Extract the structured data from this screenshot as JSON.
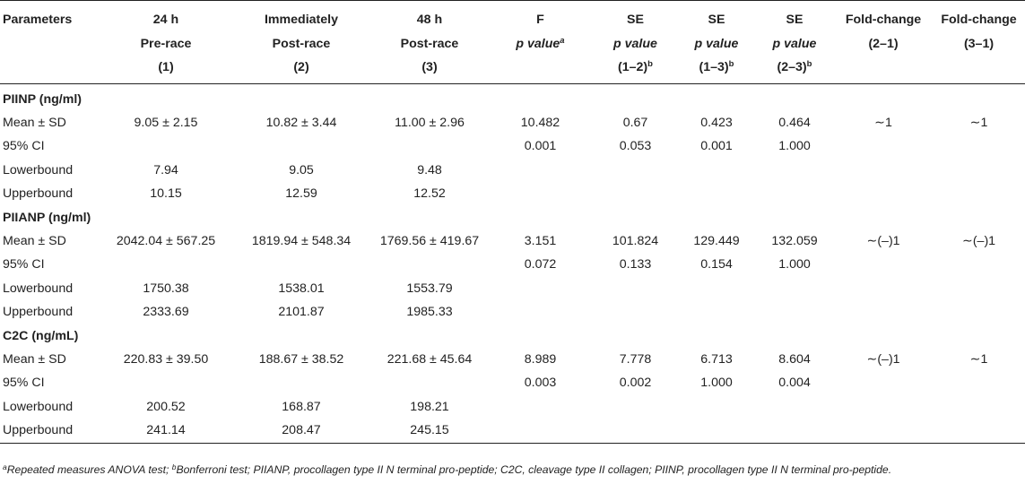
{
  "header": {
    "parameters": "Parameters",
    "col1": [
      "24 h",
      "Pre-race",
      "(1)"
    ],
    "col2": [
      "Immediately",
      "Post-race",
      "(2)"
    ],
    "col3": [
      "48 h",
      "Post-race",
      "(3)"
    ],
    "f": [
      "F",
      "p value",
      "a"
    ],
    "se12": [
      "SE",
      "p value",
      "(1–2)",
      "b"
    ],
    "se13": [
      "SE",
      "p value",
      "(1–3)",
      "b"
    ],
    "se23": [
      "SE",
      "p value",
      "(2–3)",
      "b"
    ],
    "fc21": [
      "Fold-change",
      "(2–1)"
    ],
    "fc31": [
      "Fold-change",
      "(3–1)"
    ]
  },
  "sections": [
    {
      "title": "PIINP (ng/ml)",
      "rows": [
        {
          "label": "Mean ± SD",
          "c1": "9.05 ± 2.15",
          "c2": "10.82 ± 3.44",
          "c3": "11.00 ± 2.96",
          "f": "10.482",
          "se12": "0.67",
          "se13": "0.423",
          "se23": "0.464",
          "fc21": "∼1",
          "fc31": "∼1"
        },
        {
          "label": "95% CI",
          "c1": "",
          "c2": "",
          "c3": "",
          "f": "0.001",
          "se12": "0.053",
          "se13": "0.001",
          "se23": "1.000",
          "fc21": "",
          "fc31": ""
        },
        {
          "label": "Lowerbound",
          "c1": "7.94",
          "c2": "9.05",
          "c3": "9.48",
          "f": "",
          "se12": "",
          "se13": "",
          "se23": "",
          "fc21": "",
          "fc31": ""
        },
        {
          "label": "Upperbound",
          "c1": "10.15",
          "c2": "12.59",
          "c3": "12.52",
          "f": "",
          "se12": "",
          "se13": "",
          "se23": "",
          "fc21": "",
          "fc31": ""
        }
      ]
    },
    {
      "title": "PIIANP (ng/ml)",
      "rows": [
        {
          "label": "Mean ± SD",
          "c1": "2042.04 ± 567.25",
          "c2": "1819.94 ± 548.34",
          "c3": "1769.56 ± 419.67",
          "f": "3.151",
          "se12": "101.824",
          "se13": "129.449",
          "se23": "132.059",
          "fc21": "∼(–)1",
          "fc31": "∼(–)1"
        },
        {
          "label": "95% CI",
          "c1": "",
          "c2": "",
          "c3": "",
          "f": "0.072",
          "se12": "0.133",
          "se13": "0.154",
          "se23": "1.000",
          "fc21": "",
          "fc31": ""
        },
        {
          "label": "Lowerbound",
          "c1": "1750.38",
          "c2": "1538.01",
          "c3": "1553.79",
          "f": "",
          "se12": "",
          "se13": "",
          "se23": "",
          "fc21": "",
          "fc31": ""
        },
        {
          "label": "Upperbound",
          "c1": "2333.69",
          "c2": "2101.87",
          "c3": "1985.33",
          "f": "",
          "se12": "",
          "se13": "",
          "se23": "",
          "fc21": "",
          "fc31": ""
        }
      ]
    },
    {
      "title": "C2C (ng/mL)",
      "rows": [
        {
          "label": "Mean ± SD",
          "c1": "220.83 ± 39.50",
          "c2": "188.67 ± 38.52",
          "c3": "221.68 ± 45.64",
          "f": "8.989",
          "se12": "7.778",
          "se13": "6.713",
          "se23": "8.604",
          "fc21": "∼(–)1",
          "fc31": "∼1"
        },
        {
          "label": "95% CI",
          "c1": "",
          "c2": "",
          "c3": "",
          "f": "0.003",
          "se12": "0.002",
          "se13": "1.000",
          "se23": "0.004",
          "fc21": "",
          "fc31": ""
        },
        {
          "label": "Lowerbound",
          "c1": "200.52",
          "c2": "168.87",
          "c3": "198.21",
          "f": "",
          "se12": "",
          "se13": "",
          "se23": "",
          "fc21": "",
          "fc31": ""
        },
        {
          "label": "Upperbound",
          "c1": "241.14",
          "c2": "208.47",
          "c3": "245.15",
          "f": "",
          "se12": "",
          "se13": "",
          "se23": "",
          "fc21": "",
          "fc31": ""
        }
      ]
    }
  ],
  "footnote": {
    "a_mark": "a",
    "a_text": "Repeated measures ANOVA test; ",
    "b_mark": "b",
    "b_text": "Bonferroni test; PIIANP, procollagen type II N terminal pro-peptide; C2C, cleavage type II collagen; PIINP, procollagen type II N terminal pro-peptide."
  }
}
